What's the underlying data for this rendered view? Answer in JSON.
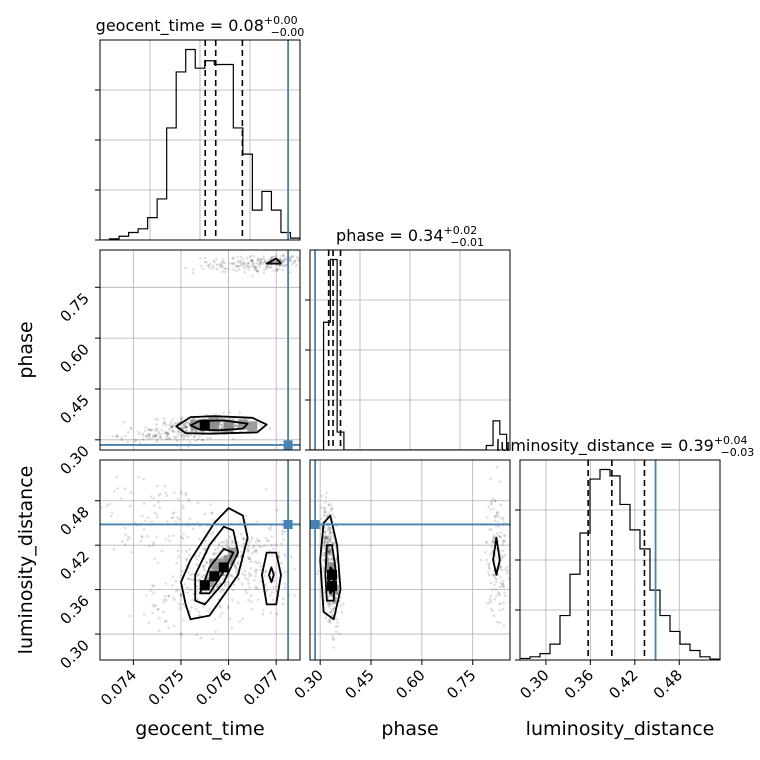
{
  "chart_data": {
    "type": "corner",
    "parameters": [
      "geocent_time",
      "phase",
      "luminosity_distance"
    ],
    "truths": {
      "geocent_time": 0.07725,
      "phase": 0.285,
      "luminosity_distance": 0.448
    },
    "truth_color": "#4682b4",
    "panels": [
      {
        "kind": "hist1d",
        "param": "geocent_time",
        "row": 0,
        "col": 0,
        "title": "geocent_time = 0.08",
        "title_sup": "+0.00",
        "title_sub": "−0.00",
        "xlim": [
          0.0733,
          0.0775
        ],
        "bins": [
          0.0733,
          0.0735,
          0.0737,
          0.0739,
          0.0741,
          0.0743,
          0.0745,
          0.0747,
          0.0749,
          0.0751,
          0.0753,
          0.0755,
          0.0757,
          0.0759,
          0.0761,
          0.0763,
          0.0765,
          0.0767,
          0.0769,
          0.0771,
          0.0773,
          0.0775
        ],
        "counts": [
          0,
          0.3,
          1,
          2,
          3,
          6,
          11,
          30,
          45,
          51,
          46,
          48,
          47,
          47,
          30,
          23,
          8,
          13,
          8,
          2,
          0.5
        ],
        "quantile_lines": [
          0.07551,
          0.07573,
          0.07629
        ],
        "grid": true,
        "ytick_fracs": [
          0,
          0.25,
          0.5,
          0.75
        ]
      },
      {
        "kind": "hist2d",
        "xparam": "geocent_time",
        "yparam": "phase",
        "row": 1,
        "col": 0,
        "xlim": [
          0.0733,
          0.0775
        ],
        "ylim": [
          0.27,
          0.86
        ],
        "yticks": [
          0.3,
          0.45,
          0.6,
          0.75
        ],
        "ytick_labels": [
          "0.30",
          "0.45",
          "0.60",
          "0.75"
        ],
        "ylabel": "phase",
        "clusters": [
          {
            "x": 0.07562,
            "y": 0.345,
            "sx": 0.00045,
            "sy": 0.015,
            "n": 320
          },
          {
            "x": 0.0747,
            "y": 0.315,
            "sx": 0.0005,
            "sy": 0.012,
            "n": 120
          },
          {
            "x": 0.0765,
            "y": 0.815,
            "sx": 0.0006,
            "sy": 0.012,
            "n": 140
          },
          {
            "x": 0.0771,
            "y": 0.83,
            "sx": 0.0003,
            "sy": 0.008,
            "n": 80
          }
        ],
        "contours": [
          [
            [
              0.0749,
              0.34
            ],
            [
              0.0751,
              0.32
            ],
            [
              0.0756,
              0.318
            ],
            [
              0.0766,
              0.322
            ],
            [
              0.0768,
              0.345
            ],
            [
              0.0765,
              0.365
            ],
            [
              0.0757,
              0.37
            ],
            [
              0.0752,
              0.367
            ],
            [
              0.0749,
              0.34
            ]
          ],
          [
            [
              0.0752,
              0.343
            ],
            [
              0.0754,
              0.33
            ],
            [
              0.0758,
              0.328
            ],
            [
              0.0763,
              0.333
            ],
            [
              0.0764,
              0.348
            ],
            [
              0.0759,
              0.357
            ],
            [
              0.0754,
              0.356
            ],
            [
              0.0752,
              0.343
            ]
          ],
          [
            [
              0.0768,
              0.82
            ],
            [
              0.077,
              0.835
            ],
            [
              0.0771,
              0.82
            ],
            [
              0.0768,
              0.82
            ]
          ]
        ],
        "dense_cells": [
          [
            0.0755,
            0.345
          ],
          [
            0.0757,
            0.34
          ],
          [
            0.076,
            0.345
          ],
          [
            0.0763,
            0.345
          ],
          [
            0.0765,
            0.34
          ],
          [
            0.0757,
            0.355
          ],
          [
            0.076,
            0.335
          ],
          [
            0.0753,
            0.345
          ]
        ],
        "darkest_cells": [
          [
            0.0755,
            0.345
          ]
        ]
      },
      {
        "kind": "hist1d",
        "param": "phase",
        "row": 1,
        "col": 1,
        "title": "phase = 0.34",
        "title_sup": "+0.02",
        "title_sub": "−0.01",
        "xlim": [
          0.27,
          0.86
        ],
        "bins": [
          0.27,
          0.29,
          0.31,
          0.33,
          0.35,
          0.37,
          0.39,
          0.41,
          0.43,
          0.45,
          0.47,
          0.49,
          0.51,
          0.53,
          0.55,
          0.57,
          0.59,
          0.61,
          0.63,
          0.65,
          0.67,
          0.69,
          0.71,
          0.73,
          0.75,
          0.77,
          0.79,
          0.81,
          0.83,
          0.85
        ],
        "counts": [
          0,
          0,
          57,
          85,
          8,
          0,
          0,
          0,
          0,
          0,
          0,
          0,
          0,
          0,
          0,
          0,
          0,
          0,
          0,
          0,
          0,
          0,
          0,
          0,
          0,
          0,
          2,
          13,
          7
        ],
        "quantile_lines": [
          0.325,
          0.338,
          0.36
        ],
        "grid": true,
        "ytick_fracs": [
          0,
          0.25,
          0.5,
          0.75
        ]
      },
      {
        "kind": "hist2d",
        "xparam": "geocent_time",
        "yparam": "luminosity_distance",
        "row": 2,
        "col": 0,
        "xlim": [
          0.0733,
          0.0775
        ],
        "ylim": [
          0.265,
          0.535
        ],
        "xticks": [
          0.074,
          0.075,
          0.076,
          0.077
        ],
        "xtick_labels": [
          "0.074",
          "0.075",
          "0.076",
          "0.077"
        ],
        "yticks": [
          0.3,
          0.36,
          0.42,
          0.48
        ],
        "ytick_labels": [
          "0.30",
          "0.36",
          "0.42",
          "0.48"
        ],
        "xlabel": "geocent_time",
        "ylabel": "luminosity_distance",
        "clusters": [
          {
            "x": 0.0758,
            "y": 0.39,
            "sx": 0.0006,
            "sy": 0.03,
            "rho": 0.75,
            "n": 320
          },
          {
            "x": 0.0746,
            "y": 0.45,
            "sx": 0.0008,
            "sy": 0.03,
            "n": 120
          },
          {
            "x": 0.0769,
            "y": 0.38,
            "sx": 0.0003,
            "sy": 0.025,
            "n": 80
          },
          {
            "x": 0.0755,
            "y": 0.34,
            "sx": 0.0006,
            "sy": 0.02,
            "n": 60
          }
        ],
        "contours": [
          [
            [
              0.0751,
              0.34
            ],
            [
              0.0752,
              0.32
            ],
            [
              0.0756,
              0.325
            ],
            [
              0.0762,
              0.38
            ],
            [
              0.0764,
              0.43
            ],
            [
              0.0763,
              0.46
            ],
            [
              0.076,
              0.47
            ],
            [
              0.0757,
              0.45
            ],
            [
              0.0752,
              0.4
            ],
            [
              0.075,
              0.37
            ],
            [
              0.0751,
              0.34
            ]
          ],
          [
            [
              0.0753,
              0.345
            ],
            [
              0.0755,
              0.34
            ],
            [
              0.0759,
              0.37
            ],
            [
              0.0762,
              0.41
            ],
            [
              0.0761,
              0.44
            ],
            [
              0.0759,
              0.445
            ],
            [
              0.0756,
              0.42
            ],
            [
              0.0753,
              0.38
            ],
            [
              0.0753,
              0.345
            ]
          ],
          [
            [
              0.0754,
              0.355
            ],
            [
              0.0756,
              0.355
            ],
            [
              0.0759,
              0.385
            ],
            [
              0.0761,
              0.41
            ],
            [
              0.0759,
              0.415
            ],
            [
              0.0756,
              0.39
            ],
            [
              0.0754,
              0.355
            ]
          ],
          [
            [
              0.0768,
              0.34
            ],
            [
              0.077,
              0.34
            ],
            [
              0.0771,
              0.38
            ],
            [
              0.077,
              0.41
            ],
            [
              0.0768,
              0.41
            ],
            [
              0.0767,
              0.38
            ],
            [
              0.0768,
              0.34
            ]
          ],
          [
            [
              0.0769,
              0.37
            ],
            [
              0.07695,
              0.38
            ],
            [
              0.0769,
              0.39
            ],
            [
              0.07685,
              0.38
            ],
            [
              0.0769,
              0.37
            ]
          ]
        ],
        "dense_cells": [
          [
            0.0756,
            0.37
          ],
          [
            0.0757,
            0.38
          ],
          [
            0.0758,
            0.385
          ],
          [
            0.0759,
            0.395
          ],
          [
            0.076,
            0.4
          ],
          [
            0.0755,
            0.365
          ],
          [
            0.0761,
            0.41
          ],
          [
            0.0757,
            0.395
          ]
        ],
        "darkest_cells": [
          [
            0.0755,
            0.366
          ],
          [
            0.0757,
            0.378
          ],
          [
            0.0759,
            0.39
          ]
        ]
      },
      {
        "kind": "hist2d",
        "xparam": "phase",
        "yparam": "luminosity_distance",
        "row": 2,
        "col": 1,
        "xlim": [
          0.27,
          0.86
        ],
        "ylim": [
          0.265,
          0.535
        ],
        "xticks": [
          0.3,
          0.45,
          0.6,
          0.75
        ],
        "xtick_labels": [
          "0.30",
          "0.45",
          "0.60",
          "0.75"
        ],
        "xlabel": "phase",
        "clusters": [
          {
            "x": 0.33,
            "y": 0.39,
            "sx": 0.012,
            "sy": 0.04,
            "rho": -0.5,
            "n": 420
          },
          {
            "x": 0.82,
            "y": 0.41,
            "sx": 0.015,
            "sy": 0.04,
            "n": 160
          }
        ],
        "contours": [
          [
            [
              0.31,
              0.33
            ],
            [
              0.34,
              0.32
            ],
            [
              0.36,
              0.36
            ],
            [
              0.35,
              0.42
            ],
            [
              0.33,
              0.46
            ],
            [
              0.31,
              0.45
            ],
            [
              0.3,
              0.4
            ],
            [
              0.31,
              0.33
            ]
          ],
          [
            [
              0.32,
              0.345
            ],
            [
              0.34,
              0.345
            ],
            [
              0.345,
              0.39
            ],
            [
              0.335,
              0.42
            ],
            [
              0.32,
              0.42
            ],
            [
              0.315,
              0.38
            ],
            [
              0.32,
              0.345
            ]
          ],
          [
            [
              0.33,
              0.355
            ],
            [
              0.34,
              0.36
            ],
            [
              0.34,
              0.385
            ],
            [
              0.33,
              0.39
            ],
            [
              0.325,
              0.37
            ],
            [
              0.33,
              0.355
            ]
          ],
          [
            [
              0.82,
              0.38
            ],
            [
              0.83,
              0.4
            ],
            [
              0.82,
              0.43
            ],
            [
              0.81,
              0.4
            ],
            [
              0.82,
              0.38
            ]
          ]
        ],
        "dense_cells": [
          [
            0.335,
            0.37
          ],
          [
            0.335,
            0.38
          ],
          [
            0.33,
            0.39
          ],
          [
            0.34,
            0.36
          ]
        ],
        "darkest_cells": [
          [
            0.335,
            0.365
          ],
          [
            0.335,
            0.38
          ]
        ]
      },
      {
        "kind": "hist1d",
        "param": "luminosity_distance",
        "row": 2,
        "col": 2,
        "title": "luminosity_distance = 0.39",
        "title_sup": "+0.04",
        "title_sub": "−0.03",
        "xlim": [
          0.265,
          0.535
        ],
        "xticks": [
          0.3,
          0.36,
          0.42,
          0.48
        ],
        "xtick_labels": [
          "0.30",
          "0.36",
          "0.42",
          "0.48"
        ],
        "xlabel": "luminosity_distance",
        "bins": [
          0.265,
          0.2785,
          0.292,
          0.3055,
          0.319,
          0.3325,
          0.346,
          0.3595,
          0.373,
          0.3865,
          0.4,
          0.4135,
          0.427,
          0.4405,
          0.454,
          0.4675,
          0.481,
          0.4945,
          0.508,
          0.5215,
          0.535
        ],
        "counts": [
          0.5,
          1,
          2,
          5,
          14,
          27,
          40,
          57,
          60,
          58,
          49,
          41,
          35,
          22,
          14,
          9,
          5,
          3,
          1,
          0.3
        ],
        "quantile_lines": [
          0.357,
          0.389,
          0.433
        ],
        "grid": true,
        "ytick_fracs": [
          0,
          0.25,
          0.5,
          0.75
        ]
      }
    ]
  }
}
